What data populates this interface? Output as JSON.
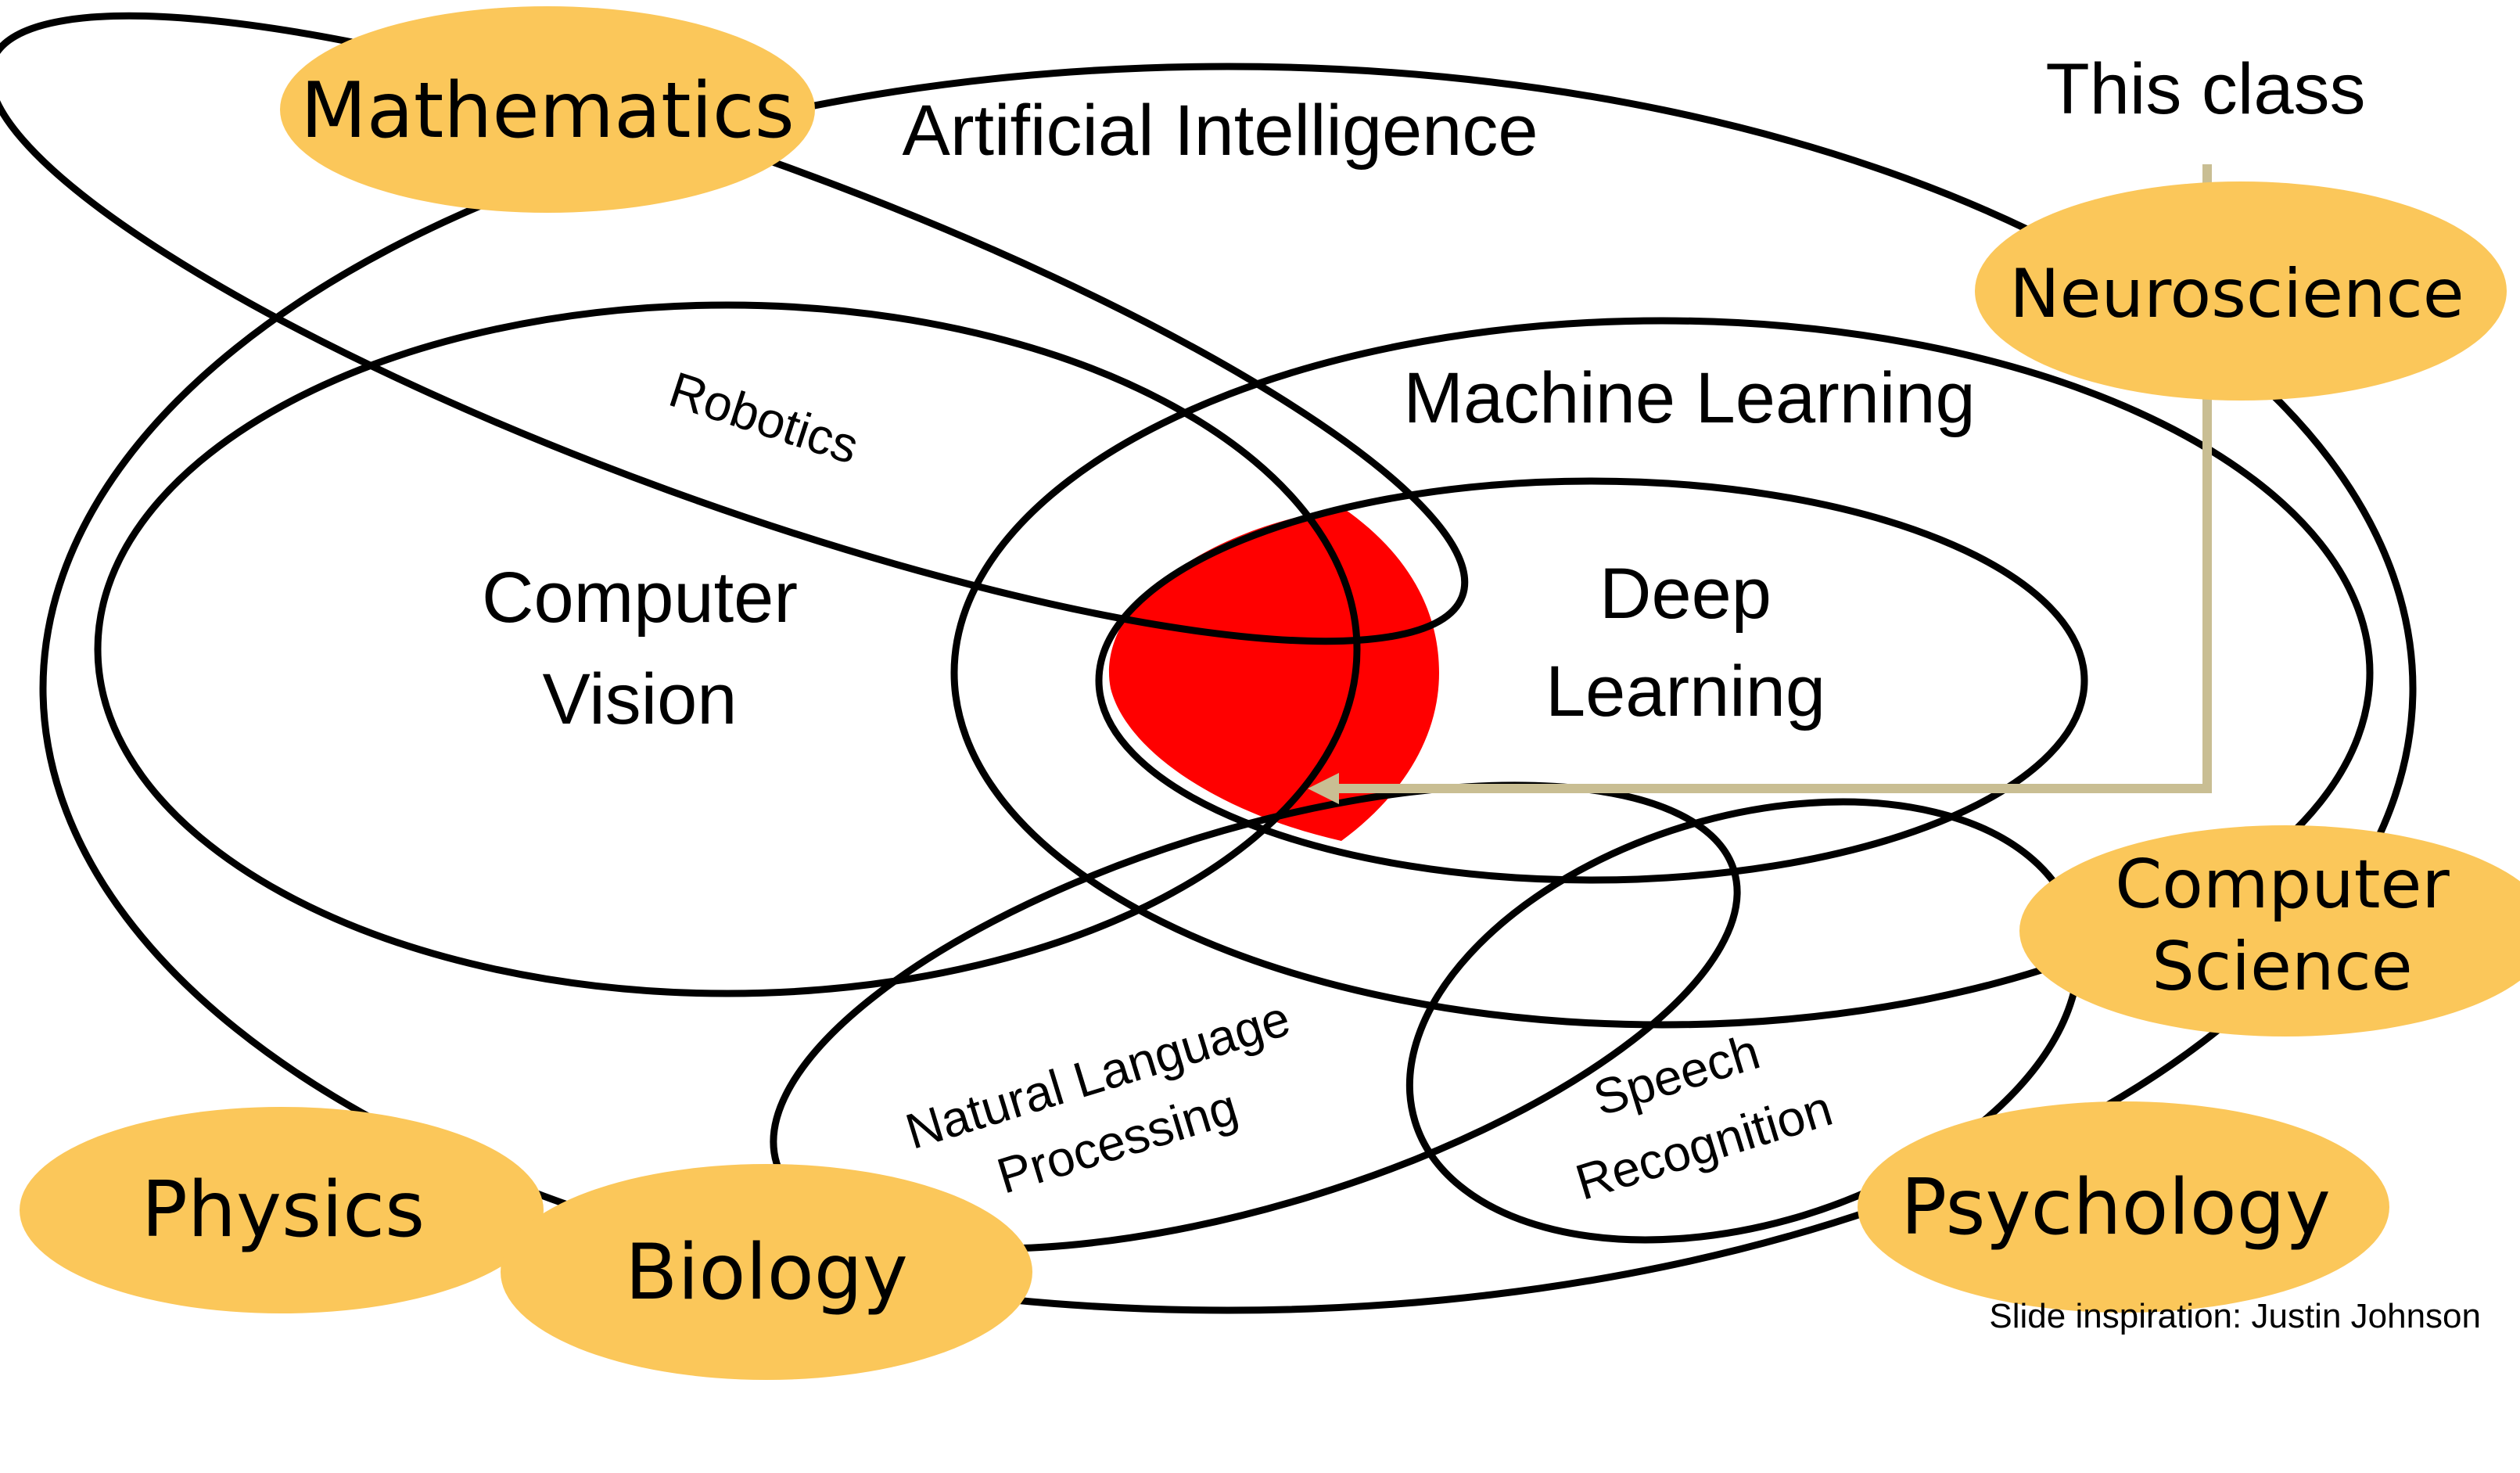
{
  "colors": {
    "blob_fill": "#FBC75A",
    "highlight_fill": "#FF0000",
    "pointer_line": "#C9BE93",
    "outline": "#000000"
  },
  "diagram": {
    "artificial_intelligence": "Artificial Intelligence",
    "machine_learning": "Machine Learning",
    "deep_learning_line1": "Deep",
    "deep_learning_line2": "Learning",
    "computer_vision_line1": "Computer",
    "computer_vision_line2": "Vision",
    "robotics": "Robotics",
    "nlp_line1": "Natural Language",
    "nlp_line2": "Processing",
    "speech_line1": "Speech",
    "speech_line2": "Recognition",
    "this_class": "This class"
  },
  "fields": {
    "mathematics": "Mathematics",
    "neuroscience": "Neuroscience",
    "computer_science_line1": "Computer",
    "computer_science_line2": "Science",
    "physics": "Physics",
    "biology": "Biology",
    "psychology": "Psychology"
  },
  "credit": "Slide inspiration: Justin Johnson"
}
